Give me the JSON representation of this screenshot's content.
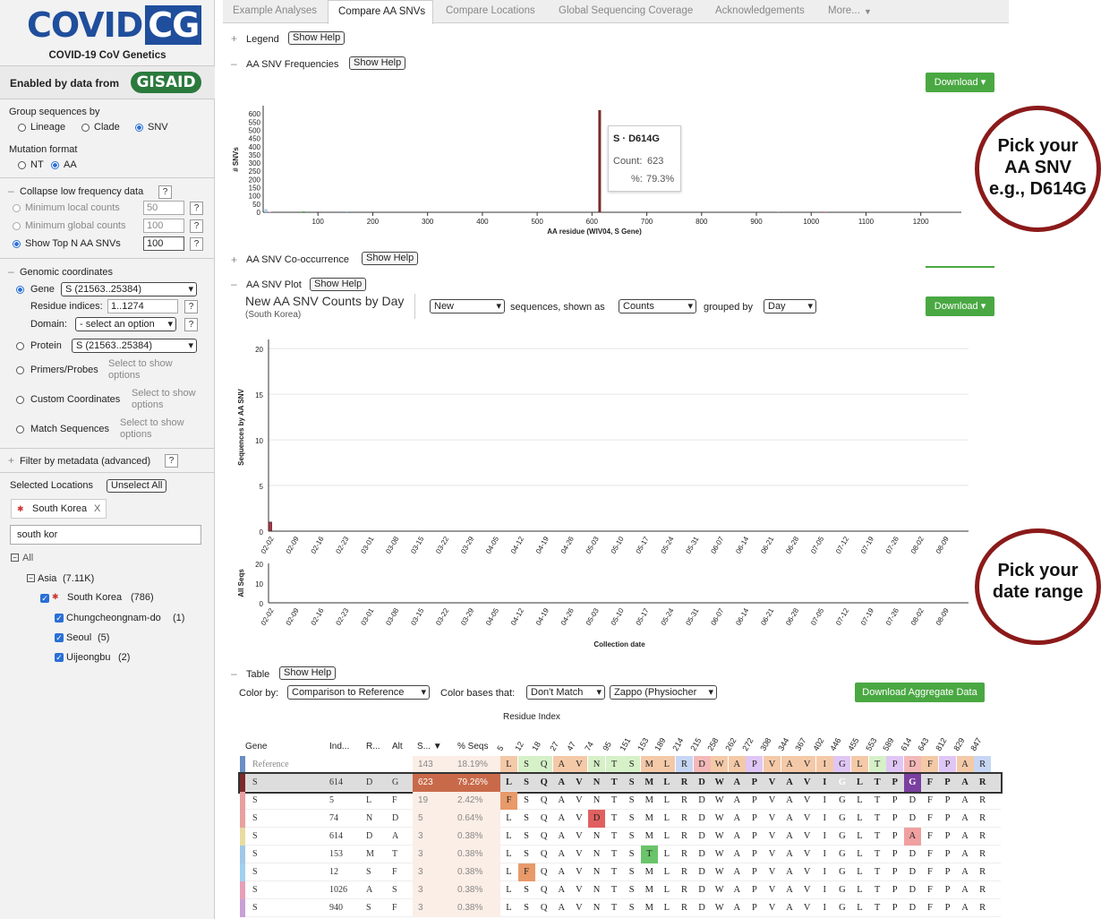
{
  "sidebar": {
    "logo_main": "COVID",
    "logo_cg": "CG",
    "subtitle": "COVID-19 CoV Genetics",
    "enabled_by": "Enabled by data from",
    "gisaid": "GISAID",
    "group_label": "Group sequences by",
    "group_opts": [
      "Lineage",
      "Clade",
      "SNV"
    ],
    "mut_label": "Mutation format",
    "mut_opts": [
      "NT",
      "AA"
    ],
    "collapse_label": "Collapse low frequency data",
    "min_local": "Minimum local counts",
    "min_local_val": "50",
    "min_global": "Minimum global counts",
    "min_global_val": "100",
    "topn": "Show Top N AA SNVs",
    "topn_val": "100",
    "genomic_label": "Genomic coordinates",
    "gene": "Gene",
    "gene_val": "S  (21563..25384)",
    "residue": "Residue indices:",
    "residue_val": "1..1274",
    "domain": "Domain:",
    "domain_val": "- select an option",
    "protein": "Protein",
    "protein_val": "S  (21563..25384)",
    "primers": "Primers/Probes",
    "custom": "Custom Coordinates",
    "match": "Match Sequences",
    "select_to_show": "Select to show",
    "options": "options",
    "filter_meta": "Filter by metadata (advanced)",
    "q": "?",
    "selected_locations": "Selected Locations",
    "unselect_all": "Unselect All",
    "chip": "South Korea",
    "chip_x": "X",
    "search_val": "south kor",
    "tree_all": "All",
    "tree_asia": "Asia",
    "tree_asia_count": "(7.11K)",
    "tree_sk": "South Korea",
    "tree_sk_count": "(786)",
    "tree_children": [
      {
        "name": "Chungcheongnam-do",
        "count": "(1)"
      },
      {
        "name": "Seoul",
        "count": "(5)"
      },
      {
        "name": "Uijeongbu",
        "count": "(2)"
      }
    ]
  },
  "tabs": [
    "Example Analyses",
    "Compare AA SNVs",
    "Compare Locations",
    "Global Sequencing Coverage",
    "Acknowledgements",
    "More..."
  ],
  "legend": {
    "label": "Legend",
    "help": "Show Help"
  },
  "freq": {
    "label": "AA SNV Frequencies",
    "help": "Show Help",
    "download": "Download",
    "ylabel": "# SNVs",
    "xlabel": "AA residue (WIV04, S Gene)",
    "tooltip_title": "S · D614G",
    "tooltip_count_label": "Count:",
    "tooltip_count": "623",
    "tooltip_pct_label": "%:",
    "tooltip_pct": "79.3%"
  },
  "cooc": {
    "label": "AA SNV Co-occurrence",
    "help": "Show Help"
  },
  "plot": {
    "label": "AA SNV Plot",
    "help": "Show Help",
    "download": "Download",
    "title": "New AA SNV Counts by Day",
    "subtitle": "(South Korea)",
    "sel1": "New",
    "txt1": "sequences, shown as",
    "sel2": "Counts",
    "txt2": "grouped by",
    "sel3": "Day",
    "ylabel": "Sequences by AA SNV",
    "ylabel2": "All Seqs",
    "xlabel": "Collection date"
  },
  "callouts": {
    "snv": [
      "Pick your",
      "AA SNV",
      "e.g., D614G"
    ],
    "date": [
      "Pick your",
      "date range"
    ]
  },
  "table": {
    "label": "Table",
    "help": "Show Help",
    "color_by": "Color by:",
    "color_val": "Comparison to Reference",
    "color_bases": "Color bases that:",
    "match_val": "Don't Match",
    "scheme_val": "Zappo (Physiocher",
    "download_agg": "Download Aggregate Data",
    "residue_index": "Residue Index",
    "headers": [
      "Gene",
      "Ind...",
      "R...",
      "Alt",
      "S... ▼",
      "% Seqs"
    ],
    "positions": [
      "5",
      "12",
      "18",
      "27",
      "47",
      "74",
      "95",
      "151",
      "153",
      "189",
      "214",
      "215",
      "258",
      "262",
      "272",
      "308",
      "344",
      "367",
      "402",
      "446",
      "455",
      "553",
      "589",
      "614",
      "643",
      "812",
      "829",
      "847"
    ],
    "rows": [
      {
        "gene": "Reference",
        "idx": "",
        "ref": "",
        "alt": "",
        "count": "143",
        "pct": "18.19%",
        "bases": "LSQAVNTSMLRDWAPVAVIGLTPDFPAR"
      },
      {
        "gene": "S",
        "idx": "614",
        "ref": "D",
        "alt": "G",
        "count": "623",
        "pct": "79.26%",
        "bases": "LSQAVNTSMLRDWAPVAVIGLTPGFPAR"
      },
      {
        "gene": "S",
        "idx": "5",
        "ref": "L",
        "alt": "F",
        "count": "19",
        "pct": "2.42%",
        "bases": "FSQAVNTSMLRDWAPVAVIGLTPDFPAR"
      },
      {
        "gene": "S",
        "idx": "74",
        "ref": "N",
        "alt": "D",
        "count": "5",
        "pct": "0.64%",
        "bases": "LSQAVDTSMLRDWAPVAVIGLTPDFPAR"
      },
      {
        "gene": "S",
        "idx": "614",
        "ref": "D",
        "alt": "A",
        "count": "3",
        "pct": "0.38%",
        "bases": "LSQAVNTSMLRDWAPVAVIGLTPAFPAR"
      },
      {
        "gene": "S",
        "idx": "153",
        "ref": "M",
        "alt": "T",
        "count": "3",
        "pct": "0.38%",
        "bases": "LSQAVNTSTLRDWAPVAVIGLTPDFPAR"
      },
      {
        "gene": "S",
        "idx": "12",
        "ref": "S",
        "alt": "F",
        "count": "3",
        "pct": "0.38%",
        "bases": "LFQAVNTSMLRDWAPVAVIGLTPDFPAR"
      },
      {
        "gene": "S",
        "idx": "1026",
        "ref": "A",
        "alt": "S",
        "count": "3",
        "pct": "0.38%",
        "bases": "LSQAVNTSMLRDWAPVAVIGLTPDFPAR"
      },
      {
        "gene": "S",
        "idx": "940",
        "ref": "S",
        "alt": "F",
        "count": "3",
        "pct": "0.38%",
        "bases": "LSQAVNTSMLRDWAPVAVIGLTPDFPAR"
      }
    ]
  },
  "chart_data": [
    {
      "type": "bar",
      "title": "",
      "xlabel": "AA residue (WIV04, S Gene)",
      "ylabel": "# SNVs",
      "xlim": [
        0,
        1274
      ],
      "ylim": [
        0,
        650
      ],
      "xticks": [
        100,
        200,
        300,
        400,
        500,
        600,
        700,
        800,
        900,
        1000,
        1100,
        1200
      ],
      "yticks": [
        0,
        50,
        100,
        150,
        200,
        250,
        300,
        350,
        400,
        450,
        500,
        550,
        600
      ],
      "bars": [
        {
          "x": 5,
          "y": 19
        },
        {
          "x": 12,
          "y": 3
        },
        {
          "x": 74,
          "y": 5
        },
        {
          "x": 153,
          "y": 3
        },
        {
          "x": 614,
          "y": 623
        },
        {
          "x": 940,
          "y": 3
        },
        {
          "x": 1026,
          "y": 3
        }
      ]
    },
    {
      "type": "bar",
      "title": "New AA SNV Counts by Day",
      "xlabel": "Collection date",
      "ylabel": "Sequences by AA SNV",
      "ylim": [
        0,
        21
      ],
      "yticks": [
        0,
        5,
        10,
        15,
        20
      ],
      "xticks": [
        "02-02",
        "02-09",
        "02-16",
        "02-23",
        "03-01",
        "03-08",
        "03-15",
        "03-22",
        "03-29",
        "04-05",
        "04-12",
        "04-19",
        "04-26",
        "05-03",
        "05-10",
        "05-17",
        "05-24",
        "05-31",
        "06-07",
        "06-14",
        "06-21",
        "06-28",
        "07-05",
        "07-12",
        "07-19",
        "07-26",
        "08-02",
        "08-09"
      ],
      "series": [
        {
          "name": "D614G",
          "values": [
            1,
            0,
            0,
            0,
            0,
            0,
            0,
            0,
            0,
            0,
            0,
            0,
            0,
            0,
            0,
            0,
            0,
            0,
            0,
            0,
            0,
            0,
            0,
            0,
            0,
            0,
            0,
            0,
            0,
            0,
            0,
            0,
            0,
            0,
            0,
            0,
            0,
            0,
            0,
            0,
            0,
            0,
            0,
            0,
            0,
            0,
            0,
            0,
            0,
            0,
            0,
            0,
            0,
            0,
            0,
            0,
            0,
            0,
            0,
            0,
            0,
            0,
            0,
            0,
            0,
            0,
            0,
            0,
            0,
            0,
            0,
            0,
            0,
            0,
            0,
            0,
            0,
            0,
            0,
            0,
            0,
            0,
            0,
            0,
            0,
            0,
            0,
            0,
            0,
            0,
            0,
            0,
            0,
            0,
            0,
            0,
            0,
            0,
            0,
            0,
            0,
            0,
            0,
            0,
            0,
            0,
            0,
            0,
            0,
            0,
            0,
            0,
            0,
            0,
            0,
            0,
            0,
            0,
            0,
            0,
            0,
            0,
            0,
            0,
            0,
            0,
            0,
            0,
            0,
            0,
            0,
            0,
            0,
            0,
            0,
            0,
            0,
            0,
            0,
            0,
            0,
            0,
            0,
            0,
            0,
            0,
            0,
            0,
            0,
            0,
            0,
            0,
            0,
            0,
            0,
            0,
            0,
            0,
            0,
            0,
            0,
            0,
            0,
            0,
            0,
            0,
            0,
            0,
            0,
            0,
            0,
            0,
            0,
            0,
            0,
            0,
            0,
            0,
            0,
            0,
            0,
            0,
            0,
            0,
            0,
            0,
            0,
            0,
            0,
            0,
            0,
            0,
            0
          ]
        }
      ]
    }
  ]
}
